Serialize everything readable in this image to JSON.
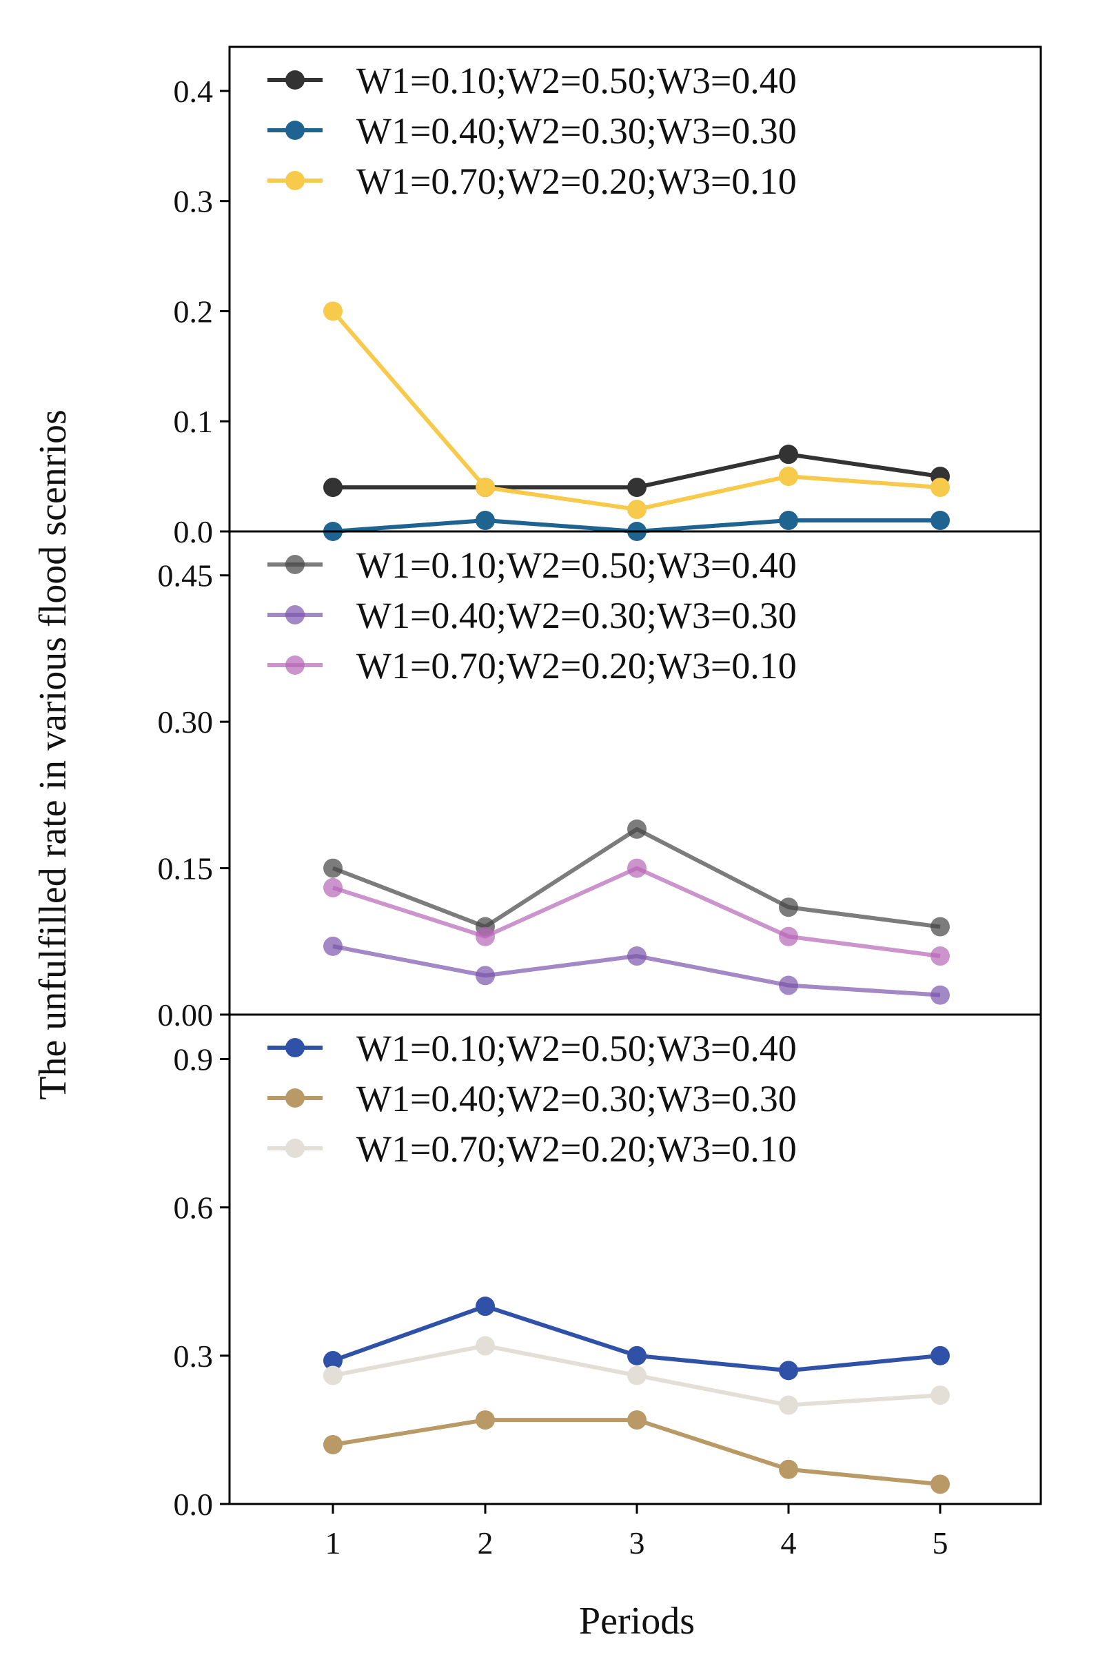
{
  "chart_data": {
    "type": "line",
    "ylabel": "The unfulfilled rate in various flood scenrios",
    "xlabel": "Periods",
    "x": [
      1,
      2,
      3,
      4,
      5
    ],
    "x_tick_labels": [
      "1",
      "2",
      "3",
      "4",
      "5"
    ],
    "panels": [
      {
        "ylim": [
          0,
          0.44
        ],
        "y_ticks": [
          0.0,
          0.1,
          0.2,
          0.3,
          0.4
        ],
        "y_tick_labels": [
          "0.0",
          "0.1",
          "0.2",
          "0.3",
          "0.4"
        ],
        "legend_position": "top-left",
        "series": [
          {
            "name": "W1=0.10;W2=0.50;W3=0.40",
            "color": "#333333",
            "opacity": 1,
            "values": [
              0.04,
              0.04,
              0.04,
              0.07,
              0.05
            ]
          },
          {
            "name": "W1=0.40;W2=0.30;W3=0.30",
            "color": "#1f6391",
            "opacity": 1,
            "values": [
              0.0,
              0.01,
              0.0,
              0.01,
              0.01
            ]
          },
          {
            "name": "W1=0.70;W2=0.20;W3=0.10",
            "color": "#f7ca4b",
            "opacity": 1,
            "values": [
              0.2,
              0.04,
              0.02,
              0.05,
              0.04
            ]
          }
        ]
      },
      {
        "ylim": [
          0,
          0.495
        ],
        "y_ticks": [
          0.0,
          0.15,
          0.3,
          0.45
        ],
        "y_tick_labels": [
          "0.00",
          "0.15",
          "0.30",
          "0.45"
        ],
        "legend_position": "top-left",
        "series": [
          {
            "name": "W1=0.10;W2=0.50;W3=0.40",
            "color": "#444444",
            "opacity": 0.7,
            "values": [
              0.15,
              0.09,
              0.19,
              0.11,
              0.09
            ]
          },
          {
            "name": "W1=0.40;W2=0.30;W3=0.30",
            "color": "#7a55ab",
            "opacity": 0.7,
            "values": [
              0.07,
              0.04,
              0.06,
              0.03,
              0.02
            ]
          },
          {
            "name": "W1=0.70;W2=0.20;W3=0.10",
            "color": "#b666b6",
            "opacity": 0.7,
            "values": [
              0.13,
              0.08,
              0.15,
              0.08,
              0.06
            ]
          }
        ]
      },
      {
        "ylim": [
          0,
          0.99
        ],
        "y_ticks": [
          0.0,
          0.3,
          0.6,
          0.9
        ],
        "y_tick_labels": [
          "0.0",
          "0.3",
          "0.6",
          "0.9"
        ],
        "legend_position": "top-left",
        "series": [
          {
            "name": "W1=0.10;W2=0.50;W3=0.40",
            "color": "#2f52a8",
            "opacity": 1,
            "values": [
              0.29,
              0.4,
              0.3,
              0.27,
              0.3
            ]
          },
          {
            "name": "W1=0.40;W2=0.30;W3=0.30",
            "color": "#b99a67",
            "opacity": 1,
            "values": [
              0.12,
              0.17,
              0.17,
              0.07,
              0.04
            ]
          },
          {
            "name": "W1=0.70;W2=0.20;W3=0.10",
            "color": "#e3dfd6",
            "opacity": 1,
            "values": [
              0.26,
              0.32,
              0.26,
              0.2,
              0.22
            ]
          }
        ]
      }
    ]
  }
}
